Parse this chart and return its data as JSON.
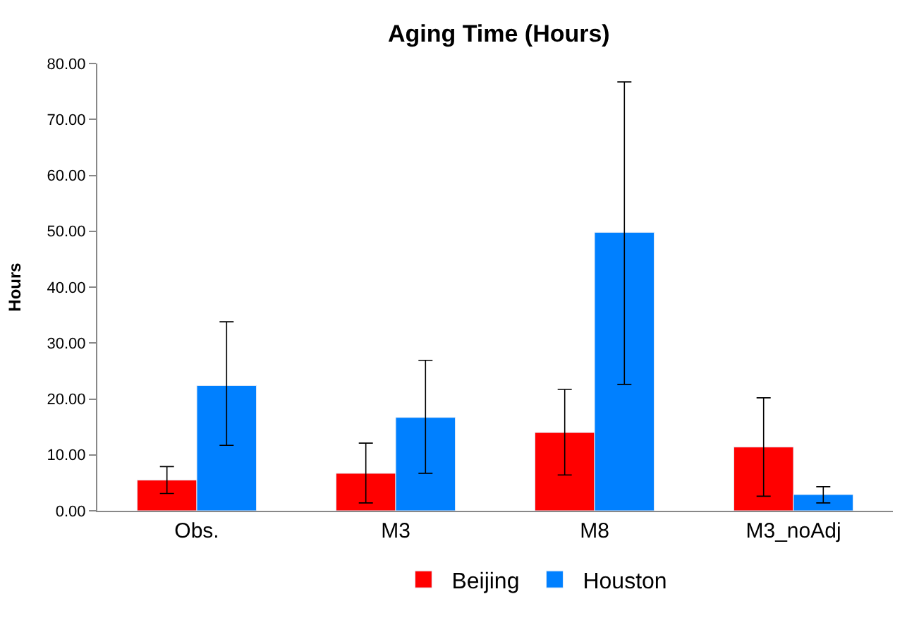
{
  "chart_data": {
    "type": "bar",
    "title": "Aging Time (Hours)",
    "ylabel": "Hours",
    "categories": [
      "Obs.",
      "M3",
      "M8",
      "M3_noAdj"
    ],
    "series": [
      {
        "name": "Beijing",
        "color": "#ff0000",
        "values": [
          5.5,
          6.7,
          14.0,
          11.4
        ],
        "errors": [
          [
            3.1,
            7.9
          ],
          [
            1.4,
            12.1
          ],
          [
            6.4,
            21.7
          ],
          [
            2.6,
            20.2
          ]
        ]
      },
      {
        "name": "Houston",
        "color": "#0080ff",
        "values": [
          22.4,
          16.7,
          49.8,
          2.9
        ],
        "errors": [
          [
            11.7,
            33.8
          ],
          [
            6.7,
            26.9
          ],
          [
            22.6,
            76.7
          ],
          [
            1.4,
            4.3
          ]
        ]
      }
    ],
    "ylim": [
      0,
      80
    ],
    "yticks": [
      {
        "value": 0,
        "label": "0.00"
      },
      {
        "value": 10,
        "label": "10.00"
      },
      {
        "value": 20,
        "label": "20.00"
      },
      {
        "value": 30,
        "label": "30.00"
      },
      {
        "value": 40,
        "label": "40.00"
      },
      {
        "value": 50,
        "label": "50.00"
      },
      {
        "value": 60,
        "label": "60.00"
      },
      {
        "value": 70,
        "label": "70.00"
      },
      {
        "value": 80,
        "label": "80.00"
      }
    ],
    "legend": "bottom"
  }
}
